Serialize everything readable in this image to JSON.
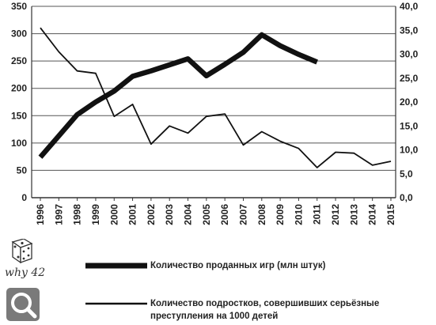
{
  "logo": {
    "brand": "why 42"
  },
  "chart_data": {
    "type": "line",
    "title": "",
    "xlabel": "",
    "ylabel_left": "",
    "ylabel_right": "",
    "x_ticks": [
      "1996",
      "1997",
      "1998",
      "1999",
      "2000",
      "2001",
      "2002",
      "2003",
      "2004",
      "2005",
      "2006",
      "2007",
      "2008",
      "2009",
      "2010",
      "2011",
      "2012",
      "2013",
      "2014",
      "2015"
    ],
    "y_left": {
      "min": 0,
      "max": 350,
      "ticks": [
        "0",
        "50",
        "100",
        "150",
        "200",
        "250",
        "300",
        "350"
      ]
    },
    "y_right": {
      "min": 0,
      "max": 40,
      "ticks": [
        "0,0",
        "5,0",
        "10,0",
        "15,0",
        "20,0",
        "25,0",
        "30,0",
        "35,0",
        "40,0"
      ]
    },
    "grid": "horizontal",
    "legend_position": "bottom",
    "series": [
      {
        "name": "Количество проданных игр (млн штук)",
        "axis": "left",
        "color": "#111111",
        "style": "thick",
        "x": [
          1996,
          1997,
          1998,
          1999,
          2000,
          2001,
          2002,
          2003,
          2004,
          2005,
          2006,
          2007,
          2008,
          2009,
          2010,
          2011
        ],
        "values": [
          74,
          113,
          152,
          175,
          195,
          222,
          232,
          243,
          254,
          223,
          244,
          266,
          298,
          278,
          262,
          248
        ]
      },
      {
        "name": "Количество подростков, совершивших серьёзные преступления на 1000 детей",
        "axis": "right",
        "color": "#111111",
        "style": "thin",
        "x": [
          1996,
          1997,
          1998,
          1999,
          2000,
          2001,
          2002,
          2003,
          2004,
          2005,
          2006,
          2007,
          2008,
          2009,
          2010,
          2011,
          2012,
          2013,
          2014,
          2015
        ],
        "values": [
          35.5,
          30.5,
          26.5,
          26.0,
          17.0,
          19.5,
          11.2,
          15.0,
          13.5,
          17.0,
          17.5,
          11.0,
          13.8,
          11.8,
          10.3,
          6.3,
          9.5,
          9.3,
          6.8,
          7.6
        ]
      }
    ]
  }
}
